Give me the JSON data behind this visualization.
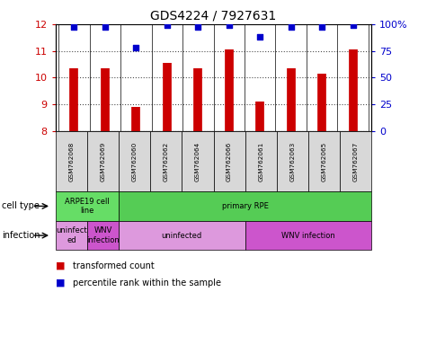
{
  "title": "GDS4224 / 7927631",
  "samples": [
    "GSM762068",
    "GSM762069",
    "GSM762060",
    "GSM762062",
    "GSM762064",
    "GSM762066",
    "GSM762061",
    "GSM762063",
    "GSM762065",
    "GSM762067"
  ],
  "transformed_count": [
    10.35,
    10.35,
    8.9,
    10.55,
    10.35,
    11.05,
    9.1,
    10.35,
    10.15,
    11.05
  ],
  "percentile_rank": [
    97,
    97,
    78,
    99,
    97,
    99,
    88,
    97,
    97,
    99
  ],
  "ylim_left": [
    8,
    12
  ],
  "ylim_right": [
    0,
    100
  ],
  "yticks_left": [
    8,
    9,
    10,
    11,
    12
  ],
  "yticks_right": [
    0,
    25,
    50,
    75,
    100
  ],
  "bar_color": "#cc0000",
  "dot_color": "#0000cc",
  "cell_type_row": [
    {
      "label": "ARPE19 cell\nline",
      "start": 0,
      "end": 2,
      "color": "#66dd66"
    },
    {
      "label": "primary RPE",
      "start": 2,
      "end": 10,
      "color": "#55cc55"
    }
  ],
  "infection_row": [
    {
      "label": "uninfect\ned",
      "start": 0,
      "end": 1,
      "color": "#dd99dd"
    },
    {
      "label": "WNV\ninfection",
      "start": 1,
      "end": 2,
      "color": "#cc55cc"
    },
    {
      "label": "uninfected",
      "start": 2,
      "end": 6,
      "color": "#dd99dd"
    },
    {
      "label": "WNV infection",
      "start": 6,
      "end": 10,
      "color": "#cc55cc"
    }
  ]
}
